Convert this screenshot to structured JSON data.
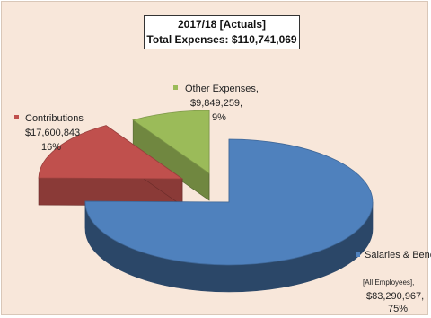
{
  "chart_data": {
    "type": "pie",
    "title": "2017/18 [Actuals]",
    "subtitle": "Total Expenses: $110,741,069",
    "slices": [
      {
        "name": "Salaries & Benefits",
        "note": "[All Employees],",
        "value": 83290967,
        "value_label": "$83,290,967,",
        "percent_label": "75%",
        "color": "#4f81bd"
      },
      {
        "name": "Contributions",
        "value": 17600843,
        "value_label": "$17,600,843",
        "percent_label": "16%",
        "color": "#c0504d"
      },
      {
        "name": "Other Expenses,",
        "value": 9849259,
        "value_label": "$9,849,259,",
        "percent_label": "9%",
        "color": "#9bbb59"
      }
    ]
  }
}
